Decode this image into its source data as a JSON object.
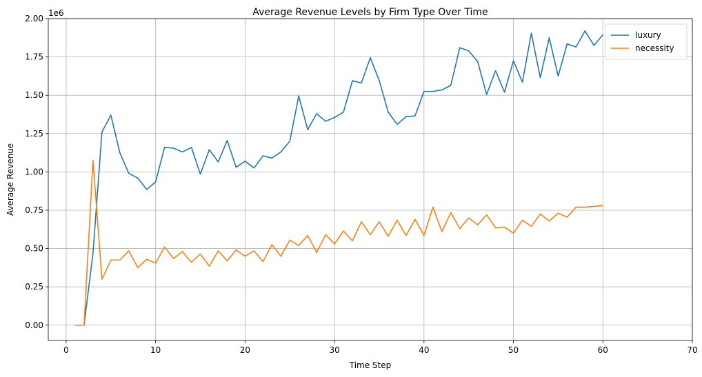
{
  "chart_data": {
    "type": "line",
    "title": "Average Revenue Levels by Firm Type Over Time",
    "xlabel": "Time Step",
    "ylabel": "Average Revenue",
    "y_offset_text": "1e6",
    "xlim": [
      -2,
      70
    ],
    "ylim": [
      -100000,
      2000000
    ],
    "x_ticks": [
      0,
      10,
      20,
      30,
      40,
      50,
      60,
      70
    ],
    "x_tick_labels": [
      "0",
      "10",
      "20",
      "30",
      "40",
      "50",
      "60",
      "70"
    ],
    "y_ticks": [
      0,
      250000,
      500000,
      750000,
      1000000,
      1250000,
      1500000,
      1750000,
      2000000
    ],
    "y_tick_labels": [
      "0.00",
      "0.25",
      "0.50",
      "0.75",
      "1.00",
      "1.25",
      "1.50",
      "1.75",
      "2.00"
    ],
    "grid": true,
    "legend_position": "top-right",
    "x": [
      1,
      2,
      3,
      4,
      5,
      6,
      7,
      8,
      9,
      10,
      11,
      12,
      13,
      14,
      15,
      16,
      17,
      18,
      19,
      20,
      21,
      22,
      23,
      24,
      25,
      26,
      27,
      28,
      29,
      30,
      31,
      32,
      33,
      34,
      35,
      36,
      37,
      38,
      39,
      40,
      41,
      42,
      43,
      44,
      45,
      46,
      47,
      48,
      49,
      50,
      51,
      52,
      53,
      54,
      55,
      56,
      57,
      58,
      59,
      60
    ],
    "series": [
      {
        "name": "luxury",
        "color": "#1f77b4",
        "values": [
          0,
          0,
          470000,
          1260000,
          1370000,
          1125000,
          990000,
          960000,
          885000,
          935000,
          1160000,
          1155000,
          1130000,
          1160000,
          985000,
          1145000,
          1065000,
          1205000,
          1030000,
          1070000,
          1025000,
          1105000,
          1090000,
          1130000,
          1200000,
          1495000,
          1275000,
          1380000,
          1330000,
          1355000,
          1390000,
          1595000,
          1580000,
          1745000,
          1595000,
          1390000,
          1310000,
          1360000,
          1365000,
          1525000,
          1525000,
          1535000,
          1565000,
          1810000,
          1790000,
          1720000,
          1505000,
          1660000,
          1520000,
          1725000,
          1585000,
          1905000,
          1615000,
          1875000,
          1625000,
          1835000,
          1815000,
          1920000,
          1825000,
          1895000
        ]
      },
      {
        "name": "necessity",
        "color": "#ff7f0e",
        "values": [
          0,
          0,
          1075000,
          300000,
          425000,
          425000,
          485000,
          375000,
          430000,
          405000,
          510000,
          435000,
          480000,
          410000,
          465000,
          385000,
          485000,
          420000,
          490000,
          450000,
          485000,
          415000,
          525000,
          450000,
          555000,
          520000,
          585000,
          475000,
          590000,
          530000,
          615000,
          550000,
          675000,
          590000,
          675000,
          580000,
          685000,
          585000,
          690000,
          585000,
          770000,
          610000,
          735000,
          630000,
          700000,
          655000,
          720000,
          635000,
          640000,
          600000,
          685000,
          645000,
          725000,
          680000,
          730000,
          705000,
          770000,
          770000,
          775000,
          780000
        ]
      }
    ]
  }
}
